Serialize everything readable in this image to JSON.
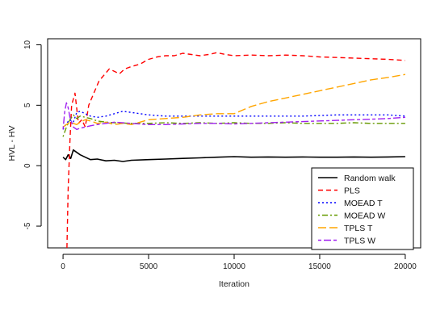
{
  "chart_data": {
    "type": "line",
    "xlabel": "Iteration",
    "ylabel": "HVL - HV",
    "xlim": [
      -900,
      20900
    ],
    "ylim": [
      -6.8,
      10.5
    ],
    "x_ticks": [
      0,
      5000,
      10000,
      15000,
      20000
    ],
    "y_ticks": [
      -5,
      0,
      5,
      10
    ],
    "grid": false,
    "legend_position": "bottom-right",
    "series": [
      {
        "name": "Random walk",
        "color": "#000000",
        "dash": "solid",
        "x": [
          0,
          150,
          300,
          450,
          600,
          800,
          1000,
          1300,
          1600,
          2000,
          2500,
          3000,
          3500,
          4000,
          5000,
          6000,
          7000,
          8000,
          9000,
          10000,
          11000,
          12000,
          13000,
          14000,
          15000,
          16000,
          17000,
          18000,
          19000,
          20000
        ],
        "values": [
          0.7,
          0.5,
          0.9,
          0.6,
          1.3,
          1.1,
          0.9,
          0.7,
          0.5,
          0.55,
          0.4,
          0.45,
          0.35,
          0.45,
          0.5,
          0.55,
          0.6,
          0.65,
          0.7,
          0.75,
          0.7,
          0.72,
          0.7,
          0.72,
          0.7,
          0.7,
          0.72,
          0.7,
          0.72,
          0.75
        ]
      },
      {
        "name": "PLS",
        "color": "#ff0000",
        "dash": "dashed",
        "x": [
          230,
          300,
          400,
          500,
          700,
          900,
          1100,
          1300,
          1500,
          1800,
          2100,
          2400,
          2700,
          3000,
          3300,
          3600,
          4000,
          4500,
          5000,
          5500,
          6000,
          6500,
          7000,
          7500,
          8000,
          8500,
          9000,
          9500,
          10000,
          11000,
          12000,
          13000,
          14000,
          15000,
          16000,
          17000,
          18000,
          19000,
          20000
        ],
        "values": [
          -6.8,
          -2.0,
          2.0,
          5.0,
          6.0,
          3.5,
          3.8,
          3.2,
          5.0,
          6.0,
          7.0,
          7.5,
          8.0,
          7.8,
          7.6,
          8.0,
          8.2,
          8.4,
          8.8,
          9.0,
          9.1,
          9.1,
          9.3,
          9.2,
          9.1,
          9.2,
          9.35,
          9.2,
          9.1,
          9.15,
          9.1,
          9.15,
          9.1,
          9.0,
          8.95,
          8.9,
          8.85,
          8.8,
          8.7
        ]
      },
      {
        "name": "MOEAD T",
        "color": "#0000ff",
        "dash": "dotted",
        "x": [
          0,
          200,
          400,
          600,
          800,
          1000,
          1300,
          1600,
          2000,
          2500,
          3000,
          3500,
          4000,
          5000,
          6000,
          7000,
          8000,
          9000,
          10000,
          11000,
          12000,
          13000,
          14000,
          15000,
          16000,
          17000,
          18000,
          19000,
          20000
        ],
        "values": [
          3.0,
          3.5,
          3.8,
          3.6,
          4.4,
          4.5,
          4.3,
          4.1,
          4.0,
          4.1,
          4.3,
          4.5,
          4.4,
          4.2,
          4.1,
          4.1,
          4.1,
          4.1,
          4.1,
          4.1,
          4.1,
          4.1,
          4.1,
          4.15,
          4.2,
          4.2,
          4.2,
          4.2,
          4.1
        ]
      },
      {
        "name": "MOEAD W",
        "color": "#669900",
        "dash": "dotdash",
        "x": [
          0,
          200,
          400,
          600,
          800,
          1000,
          1300,
          1600,
          2000,
          2500,
          3000,
          4000,
          5000,
          6000,
          7000,
          8000,
          9000,
          10000,
          11000,
          12000,
          13000,
          14000,
          15000,
          16000,
          17000,
          18000,
          19000,
          20000
        ],
        "values": [
          2.4,
          3.2,
          3.8,
          4.2,
          3.9,
          4.1,
          4.0,
          3.9,
          3.7,
          3.6,
          3.55,
          3.5,
          3.5,
          3.55,
          3.5,
          3.55,
          3.5,
          3.55,
          3.5,
          3.5,
          3.55,
          3.5,
          3.5,
          3.5,
          3.55,
          3.5,
          3.5,
          3.5
        ]
      },
      {
        "name": "TPLS T",
        "color": "#ffa500",
        "dash": "longdash",
        "x": [
          0,
          200,
          400,
          600,
          800,
          1000,
          1300,
          1600,
          2000,
          2500,
          3000,
          3500,
          4000,
          5000,
          6000,
          7000,
          8000,
          9000,
          10000,
          11000,
          12000,
          13000,
          14000,
          15000,
          16000,
          17000,
          18000,
          19000,
          20000
        ],
        "values": [
          3.2,
          3.4,
          3.6,
          3.5,
          3.4,
          3.6,
          3.8,
          3.7,
          3.5,
          3.6,
          3.4,
          3.5,
          3.4,
          3.8,
          3.9,
          4.0,
          4.2,
          4.3,
          4.3,
          4.9,
          5.3,
          5.6,
          5.9,
          6.2,
          6.5,
          6.8,
          7.1,
          7.3,
          7.55
        ]
      },
      {
        "name": "TPLS W",
        "color": "#a020f0",
        "dash": "twodash",
        "x": [
          0,
          100,
          200,
          300,
          400,
          500,
          600,
          800,
          1000,
          1300,
          1600,
          2000,
          2500,
          3000,
          4000,
          5000,
          6000,
          7000,
          8000,
          9000,
          10000,
          11000,
          12000,
          13000,
          14000,
          15000,
          16000,
          17000,
          18000,
          19000,
          20000
        ],
        "values": [
          3.0,
          4.5,
          5.2,
          4.8,
          4.0,
          3.6,
          3.2,
          3.0,
          3.1,
          3.2,
          3.3,
          3.4,
          3.5,
          3.6,
          3.5,
          3.4,
          3.4,
          3.45,
          3.5,
          3.5,
          3.45,
          3.5,
          3.55,
          3.6,
          3.65,
          3.7,
          3.75,
          3.8,
          3.85,
          3.9,
          4.0
        ]
      }
    ]
  }
}
